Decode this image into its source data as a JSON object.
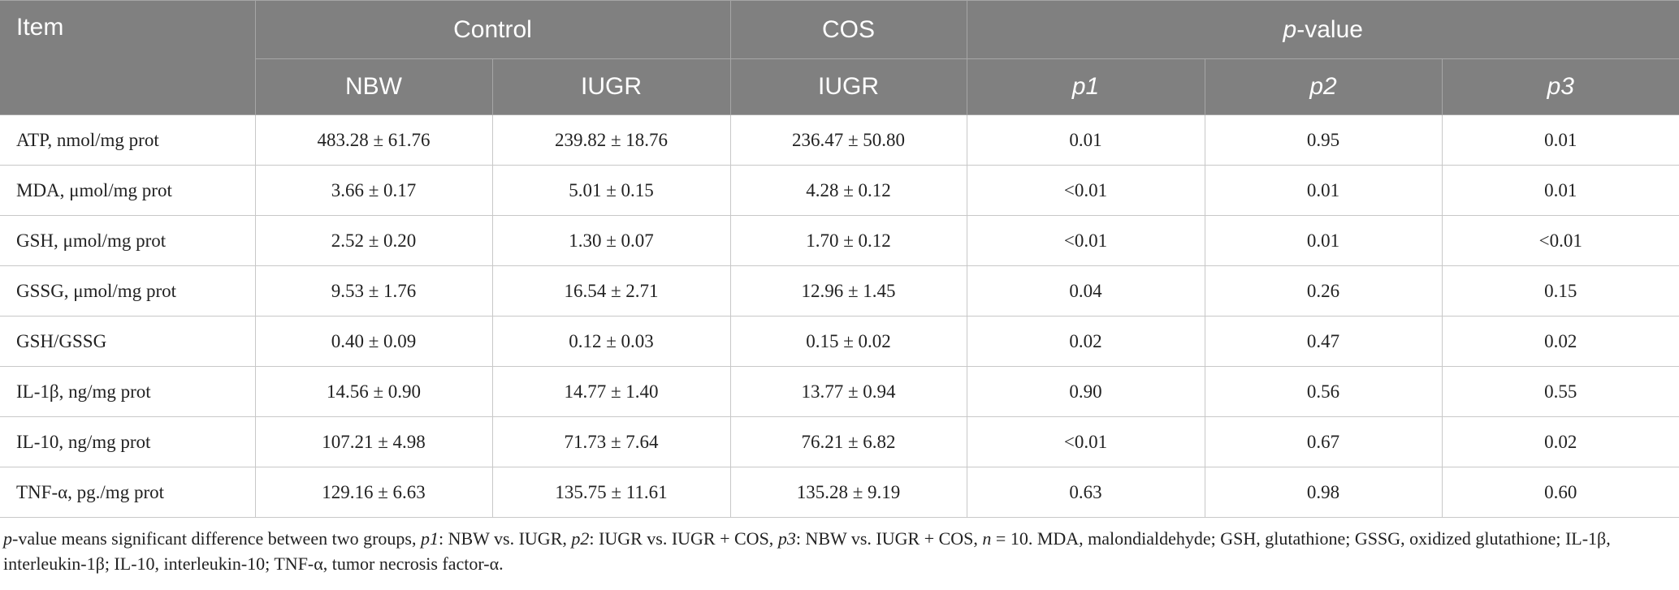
{
  "table": {
    "header": {
      "item": "Item",
      "control": "Control",
      "cos": "COS",
      "pvalue": [
        "p",
        "-value"
      ],
      "sub": [
        "NBW",
        "IUGR",
        "IUGR",
        "p1",
        "p2",
        "p3"
      ]
    },
    "rows": [
      [
        "ATP, nmol/mg prot",
        "483.28 ± 61.76",
        "239.82 ± 18.76",
        "236.47 ± 50.80",
        "0.01",
        "0.95",
        "0.01"
      ],
      [
        "MDA, μmol/mg prot",
        "3.66 ± 0.17",
        "5.01 ± 0.15",
        "4.28 ± 0.12",
        "<0.01",
        "0.01",
        "0.01"
      ],
      [
        "GSH, μmol/mg prot",
        "2.52 ± 0.20",
        "1.30 ± 0.07",
        "1.70 ± 0.12",
        "<0.01",
        "0.01",
        "<0.01"
      ],
      [
        "GSSG, μmol/mg prot",
        "9.53 ± 1.76",
        "16.54 ± 2.71",
        "12.96 ± 1.45",
        "0.04",
        "0.26",
        "0.15"
      ],
      [
        "GSH/GSSG",
        "0.40 ± 0.09",
        "0.12 ± 0.03",
        "0.15 ± 0.02",
        "0.02",
        "0.47",
        "0.02"
      ],
      [
        "IL-1β, ng/mg prot",
        "14.56 ± 0.90",
        "14.77 ± 1.40",
        "13.77 ± 0.94",
        "0.90",
        "0.56",
        "0.55"
      ],
      [
        "IL-10, ng/mg prot",
        "107.21 ± 4.98",
        "71.73 ± 7.64",
        "76.21 ± 6.82",
        "<0.01",
        "0.67",
        "0.02"
      ],
      [
        "TNF-α, pg./mg prot",
        "129.16 ± 6.63",
        "135.75 ± 11.61",
        "135.28 ± 9.19",
        "0.63",
        "0.98",
        "0.60"
      ]
    ],
    "footnote": [
      "p",
      "-value means significant difference between two groups, ",
      "p1",
      ": NBW vs. IUGR, ",
      "p2",
      ": IUGR vs. IUGR + COS, ",
      "p3",
      ": NBW vs. IUGR + COS, ",
      "n",
      " = 10. MDA, malondialdehyde; GSH, glutathione; GSSG, oxidized glutathione; IL-1β, interleukin-1β; IL-10, interleukin-10; TNF-α, tumor necrosis factor-α."
    ]
  }
}
